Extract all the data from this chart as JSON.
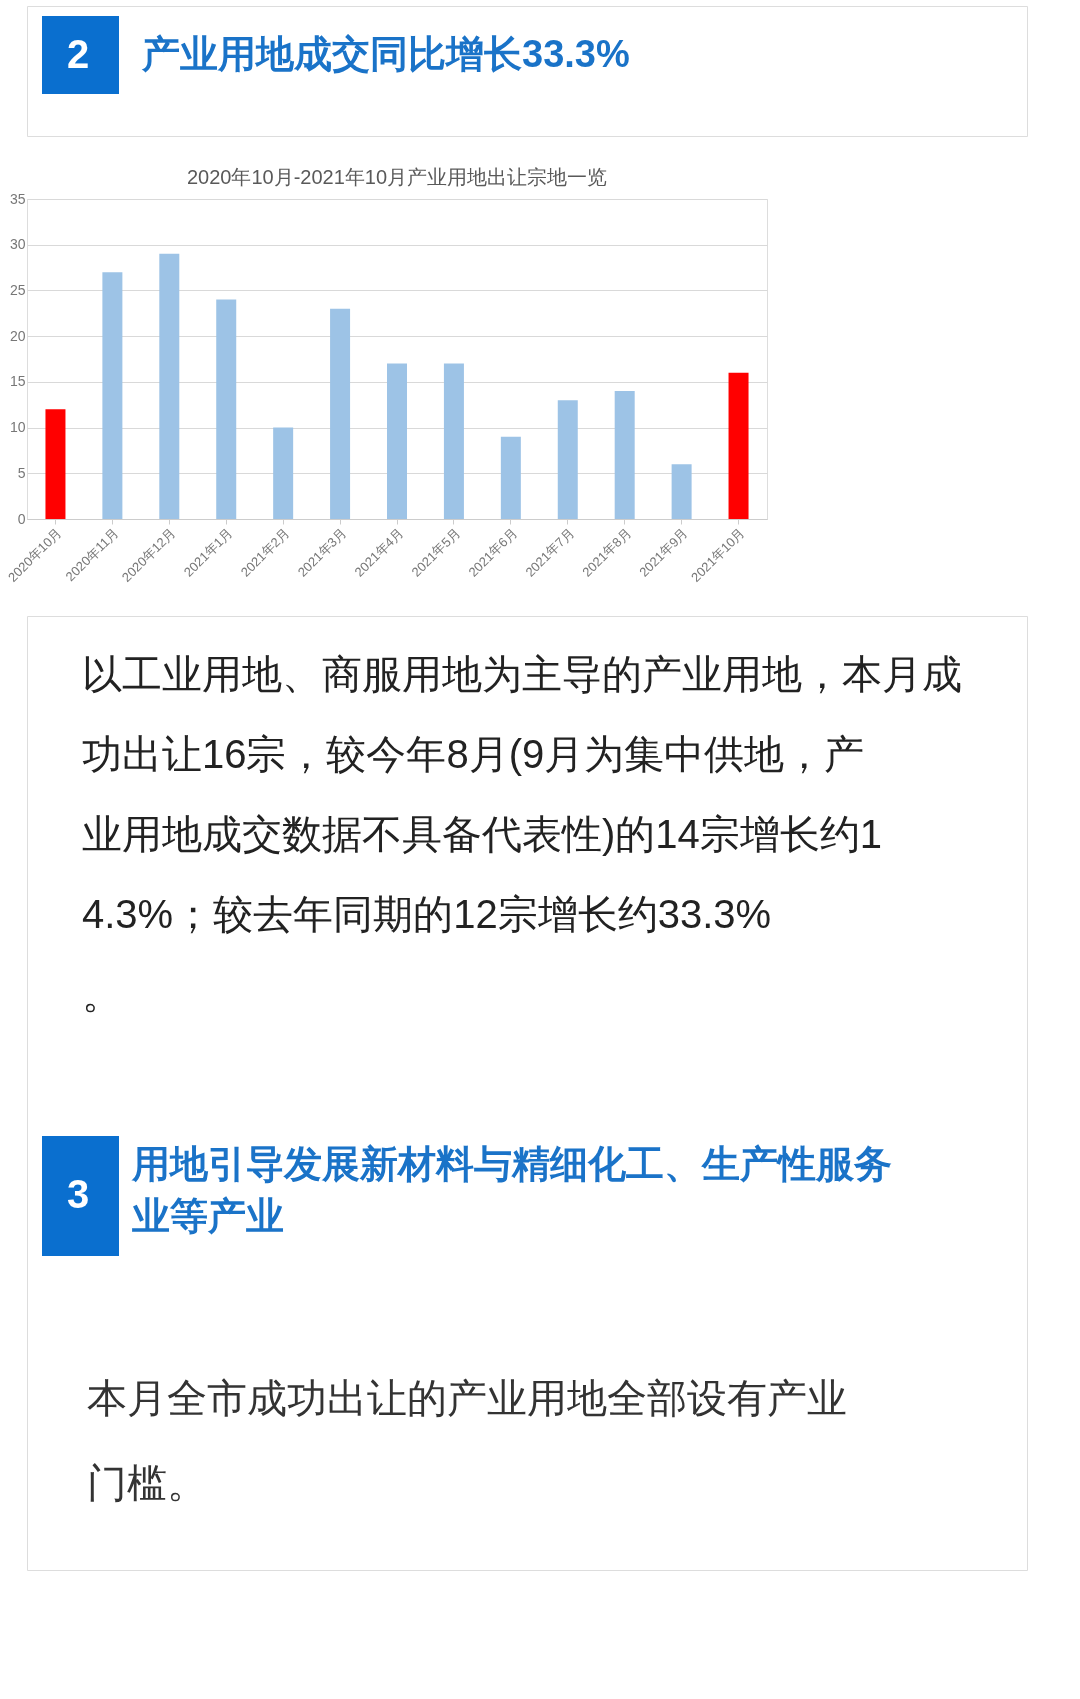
{
  "chart_data": {
    "type": "bar",
    "title": "2020年10月-2021年10月产业用地出让宗地一览",
    "categories": [
      "2020年10月",
      "2020年11月",
      "2020年12月",
      "2021年1月",
      "2021年2月",
      "2021年3月",
      "2021年4月",
      "2021年5月",
      "2021年6月",
      "2021年7月",
      "2021年8月",
      "2021年9月",
      "2021年10月"
    ],
    "values": [
      12,
      27,
      29,
      24,
      10,
      23,
      17,
      17,
      9,
      13,
      14,
      6,
      16
    ],
    "colors": [
      "#ff0000",
      "#9dc3e6",
      "#9dc3e6",
      "#9dc3e6",
      "#9dc3e6",
      "#9dc3e6",
      "#9dc3e6",
      "#9dc3e6",
      "#9dc3e6",
      "#9dc3e6",
      "#9dc3e6",
      "#9dc3e6",
      "#ff0000"
    ],
    "ylim": [
      0,
      35
    ],
    "yticks": [
      0,
      5,
      10,
      15,
      20,
      25,
      30,
      35
    ],
    "grid": "y",
    "annotations": [
      "2",
      "产业用地成交同比增长33.3%",
      "以工业用地、商服用地为主导的产业用地，本月成功出让16宗，较今年8月(9月为集中供地，产业用地成交数据不具备代表性)的14宗增长约14.3%；较去年同期的12宗增长约33.3%。",
      "3",
      "用地引导发展新材料与精细化工、生产性服务业等产业",
      "本月全市成功出让的产业用地全部设有产业门槛。"
    ]
  }
}
